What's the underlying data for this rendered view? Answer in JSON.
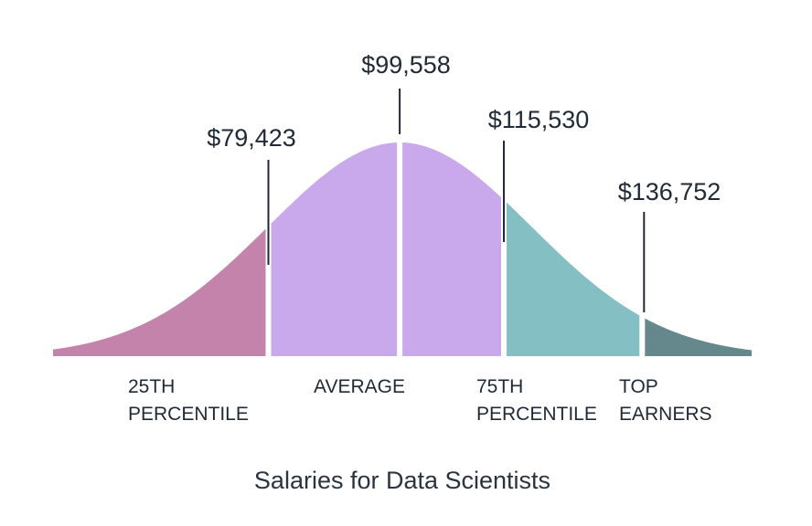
{
  "chart_data": {
    "type": "area",
    "title": "Salaries for Data Scientists",
    "distribution": "normal",
    "x_unit": "USD",
    "markers": [
      {
        "key": "p25",
        "value": 79423,
        "label": "$79,423",
        "category": [
          "25TH",
          "PERCENTILE"
        ]
      },
      {
        "key": "average",
        "value": 99558,
        "label": "$99,558",
        "category": [
          "AVERAGE"
        ]
      },
      {
        "key": "p75",
        "value": 115530,
        "label": "$115,530",
        "category": [
          "75TH",
          "PERCENTILE"
        ]
      },
      {
        "key": "top",
        "value": 136752,
        "label": "$136,752",
        "category": [
          "TOP",
          "EARNERS"
        ]
      }
    ],
    "segments": [
      {
        "from": null,
        "to": 79423,
        "color": "#c483ab"
      },
      {
        "from": 79423,
        "to": 99558,
        "color": "#c9a9ec"
      },
      {
        "from": 99558,
        "to": 115530,
        "color": "#c9a9ec"
      },
      {
        "from": 115530,
        "to": 136752,
        "color": "#84bfc3"
      },
      {
        "from": 136752,
        "to": null,
        "color": "#64888c"
      }
    ]
  }
}
